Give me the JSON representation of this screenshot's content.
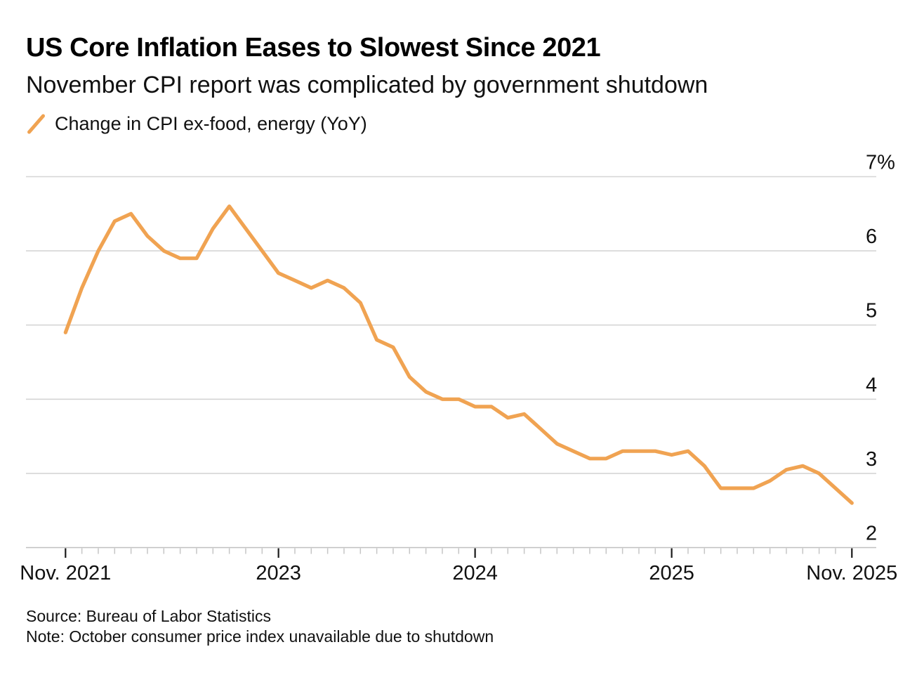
{
  "header": {
    "title": "US Core Inflation Eases to Slowest Since 2021",
    "subtitle": "November CPI report was complicated by government shutdown"
  },
  "legend": {
    "label": "Change in CPI ex-food, energy (YoY)"
  },
  "chart_data": {
    "type": "line",
    "title": "US Core Inflation Eases to Slowest Since 2021",
    "subtitle": "November CPI report was complicated by government shutdown",
    "unit": "%",
    "grid": "horizontal",
    "legend_position": "top-left",
    "series": [
      {
        "name": "Change in CPI ex-food, energy (YoY)",
        "color": "#F0A352",
        "x": [
          "Nov 2021",
          "Dec 2021",
          "Jan 2022",
          "Feb 2022",
          "Mar 2022",
          "Apr 2022",
          "May 2022",
          "Jun 2022",
          "Jul 2022",
          "Aug 2022",
          "Sep 2022",
          "Oct 2022",
          "Nov 2022",
          "Dec 2022",
          "Jan 2023",
          "Feb 2023",
          "Mar 2023",
          "Apr 2023",
          "May 2023",
          "Jun 2023",
          "Jul 2023",
          "Aug 2023",
          "Sep 2023",
          "Oct 2023",
          "Nov 2023",
          "Dec 2023",
          "Jan 2024",
          "Feb 2024",
          "Mar 2024",
          "Apr 2024",
          "May 2024",
          "Jun 2024",
          "Jul 2024",
          "Aug 2024",
          "Sep 2024",
          "Oct 2024",
          "Nov 2024",
          "Dec 2024",
          "Jan 2025",
          "Feb 2025",
          "Mar 2025",
          "Apr 2025",
          "May 2025",
          "Jun 2025",
          "Jul 2025",
          "Aug 2025",
          "Sep 2025",
          "Oct 2025",
          "Nov 2025"
        ],
        "values": [
          4.9,
          5.5,
          6.0,
          6.4,
          6.5,
          6.2,
          6.0,
          5.9,
          5.9,
          6.3,
          6.6,
          6.3,
          6.0,
          5.7,
          5.6,
          5.5,
          5.6,
          5.5,
          5.3,
          4.8,
          4.7,
          4.3,
          4.1,
          4.0,
          4.0,
          3.9,
          3.9,
          3.75,
          3.8,
          3.6,
          3.4,
          3.3,
          3.2,
          3.2,
          3.3,
          3.3,
          3.3,
          3.25,
          3.3,
          3.1,
          2.8,
          2.8,
          2.8,
          2.9,
          3.05,
          3.1,
          3.0,
          null,
          2.6
        ]
      }
    ],
    "missing_data_note": "Oct 2025 value unavailable (government shutdown); line connects Sep 2025 to Nov 2025",
    "y_axis": {
      "side": "right",
      "min": 2,
      "max": 7,
      "ticks": [
        2,
        3,
        4,
        5,
        6,
        7
      ],
      "top_tick_label": "7%"
    },
    "x_axis": {
      "minor_ticks": "monthly",
      "major_tick_labels": [
        "Nov. 2021",
        "2023",
        "2024",
        "2025",
        "Nov. 2025"
      ],
      "major_tick_month_indices": [
        0,
        13,
        25,
        37,
        48
      ]
    },
    "colors": {
      "line": "#F0A352",
      "gridline": "#d5d5d5",
      "baseline": "#c0c0c0",
      "minor_tick": "#c6c6c6",
      "major_tick": "#1a1a1a",
      "axis_text": "#111111"
    }
  },
  "footer": {
    "source": "Source: Bureau of Labor Statistics",
    "note": "Note: October consumer price index unavailable due to shutdown"
  }
}
